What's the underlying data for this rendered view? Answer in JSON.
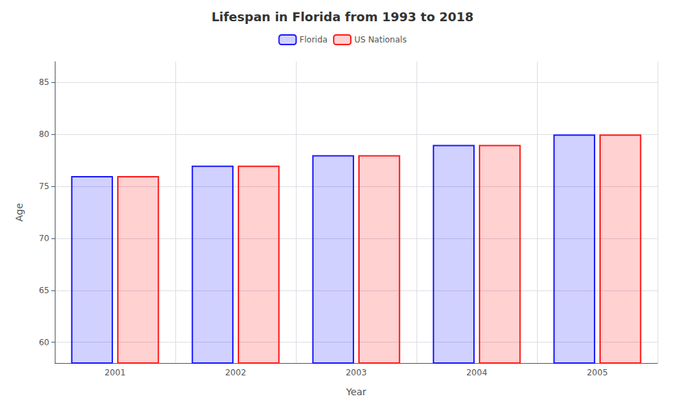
{
  "chart_data": {
    "type": "bar",
    "title": "Lifespan in Florida from 1993 to 2018",
    "x_label": "Year",
    "y_label": "Age",
    "categories": [
      "2001",
      "2002",
      "2003",
      "2004",
      "2005"
    ],
    "series": [
      {
        "name": "Florida",
        "color": "#1a1aff",
        "values": [
          76,
          77,
          78,
          79,
          80
        ]
      },
      {
        "name": "US Nationals",
        "color": "#ff1a1a",
        "values": [
          76,
          77,
          78,
          79,
          80
        ]
      }
    ],
    "ylim": [
      58,
      87
    ],
    "yticks": [
      60,
      65,
      70,
      75,
      80,
      85
    ],
    "grid": true,
    "legend": "top"
  }
}
